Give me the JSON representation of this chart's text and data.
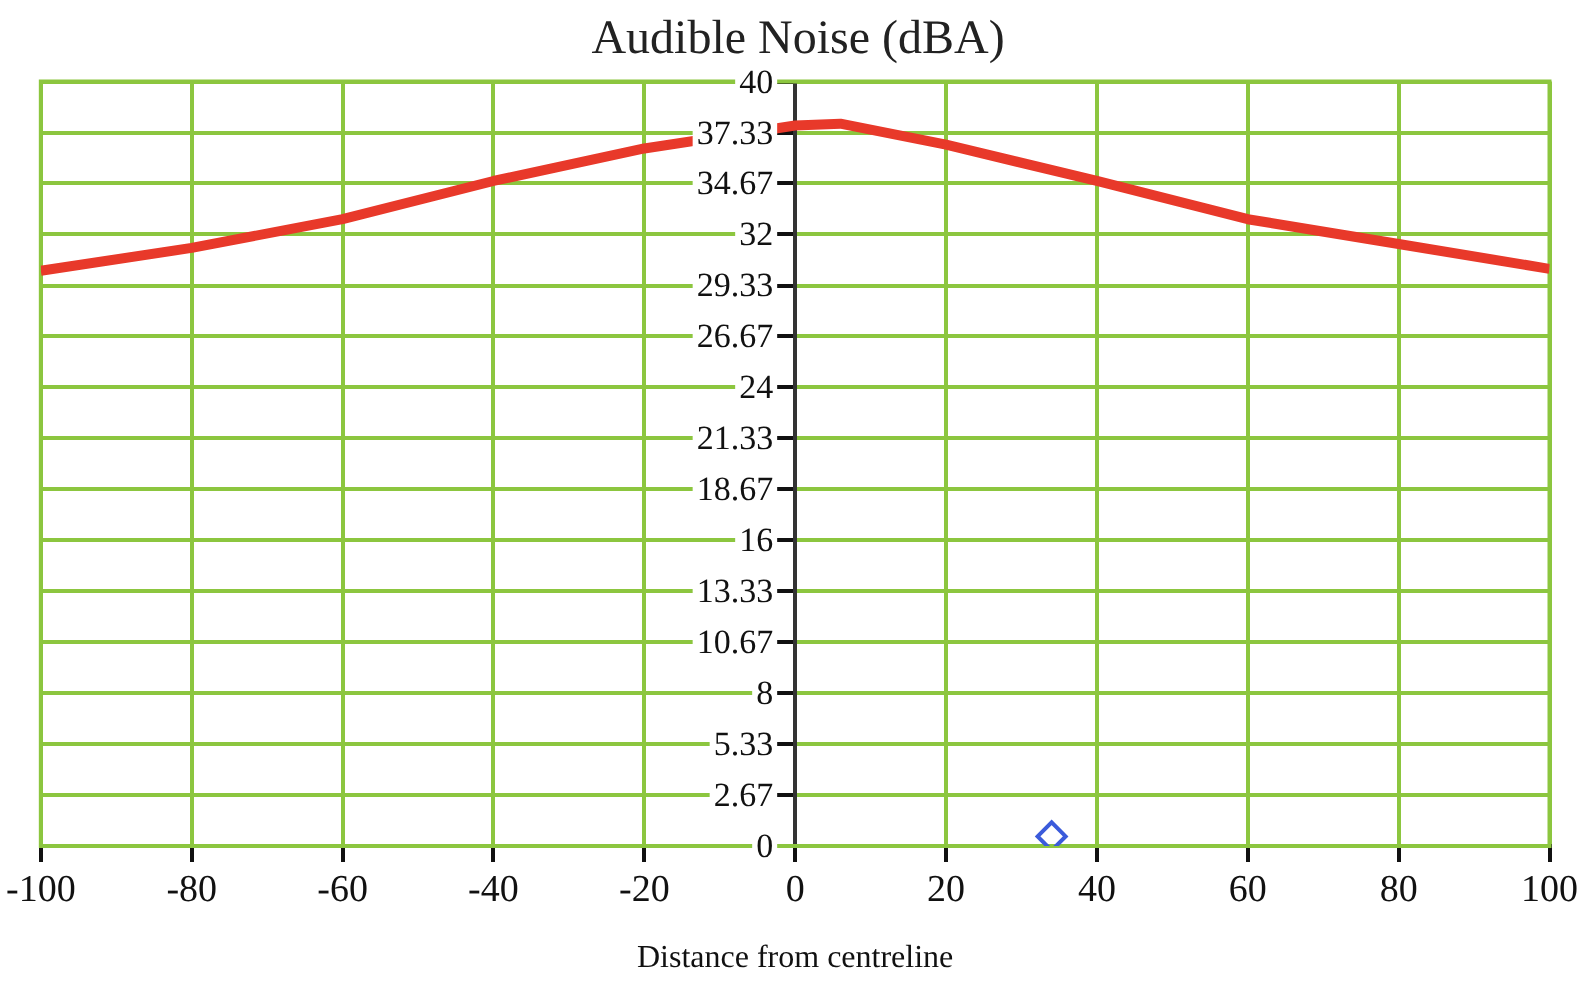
{
  "chart_data": {
    "type": "line",
    "title": "Audible Noise (dBA)",
    "xlabel": "Distance from centreline",
    "xlim": [
      -100,
      100
    ],
    "xticks": [
      -100,
      -80,
      -60,
      -40,
      -20,
      0,
      20,
      40,
      60,
      80,
      100
    ],
    "ylim": [
      0,
      40
    ],
    "yticks": [
      0,
      2.67,
      5.33,
      8,
      10.67,
      13.33,
      16,
      18.67,
      21.33,
      24,
      26.67,
      29.33,
      32,
      34.67,
      37.33,
      40
    ],
    "grid": true,
    "legend": false,
    "series": [
      {
        "color": "#e8392a",
        "marker": "none",
        "x": [
          -100,
          -80,
          -60,
          -40,
          -20,
          0,
          6,
          20,
          40,
          60,
          80,
          100
        ],
        "values": [
          30.1,
          31.3,
          32.8,
          34.8,
          36.5,
          37.7,
          37.8,
          36.7,
          34.8,
          32.8,
          31.5,
          30.2
        ]
      },
      {
        "type": "scatter",
        "color": "#3b5bdb",
        "marker": "diamond",
        "x": [
          34
        ],
        "values": [
          0.5
        ]
      }
    ]
  }
}
